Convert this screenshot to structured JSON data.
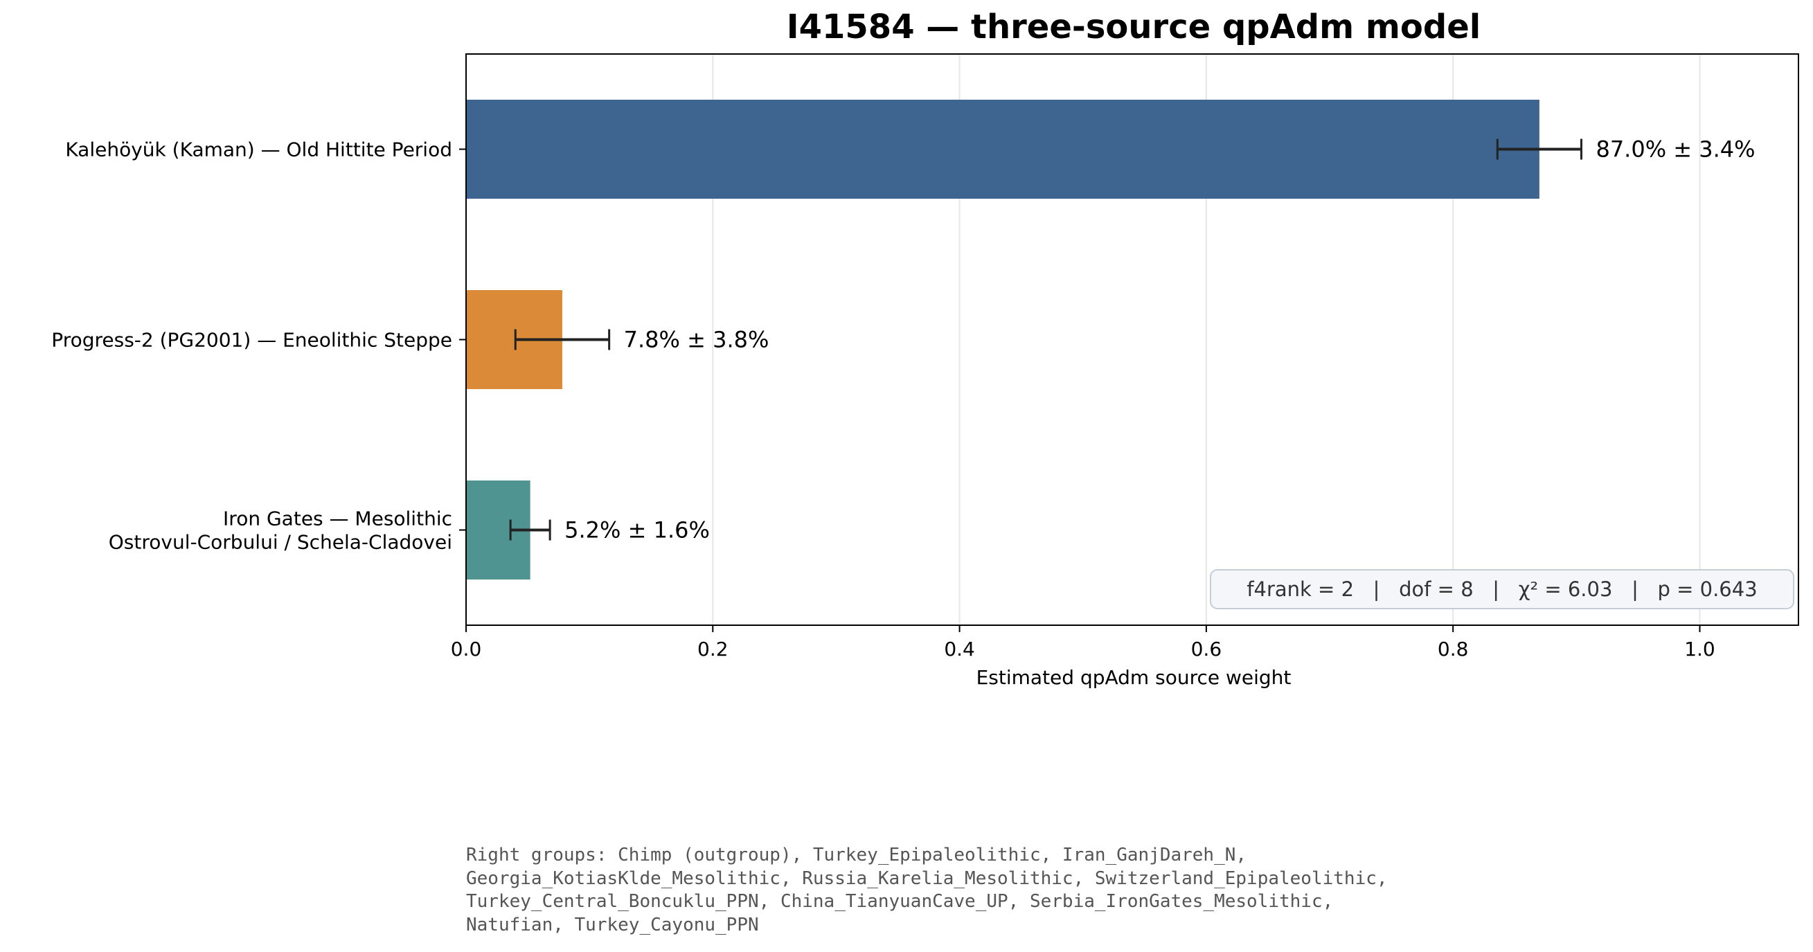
{
  "chart_data": {
    "type": "bar",
    "orientation": "horizontal",
    "title": "I41584 — three-source qpAdm model",
    "xlabel": "Estimated qpAdm source weight",
    "ylabel": "",
    "xlim": [
      0.0,
      1.08
    ],
    "xticks": [
      0.0,
      0.2,
      0.4,
      0.6,
      0.8,
      1.0
    ],
    "xtick_labels": [
      "0.0",
      "0.2",
      "0.4",
      "0.6",
      "0.8",
      "1.0"
    ],
    "grid": "vertical",
    "categories": [
      [
        "Kalehöyük (Kaman) — Old Hittite Period"
      ],
      [
        "Progress-2 (PG2001) — Eneolithic Steppe"
      ],
      [
        "Iron Gates — Mesolithic",
        "Ostrovul-Corbului / Schela-Cladovei"
      ]
    ],
    "values": [
      0.87,
      0.078,
      0.052
    ],
    "errors": [
      0.034,
      0.038,
      0.016
    ],
    "value_labels": [
      "87.0% ± 3.4%",
      "7.8% ± 3.8%",
      "5.2% ± 1.6%"
    ],
    "colors": [
      "#3e6590",
      "#db8a37",
      "#4f9491"
    ],
    "stats_box": {
      "text": "f4rank = 2   |   dof = 8   |   χ² = 6.03   |   p = 0.643",
      "placement": "bottom-right"
    }
  },
  "footnote": "Right groups: Chimp (outgroup), Turkey_Epipaleolithic, Iran_GanjDareh_N,\nGeorgia_KotiasKlde_Mesolithic, Russia_Karelia_Mesolithic, Switzerland_Epipaleolithic,\nTurkey_Central_Boncuklu_PPN, China_TianyuanCave_UP, Serbia_IronGates_Mesolithic,\nNatufian, Turkey_Cayonu_PPN"
}
